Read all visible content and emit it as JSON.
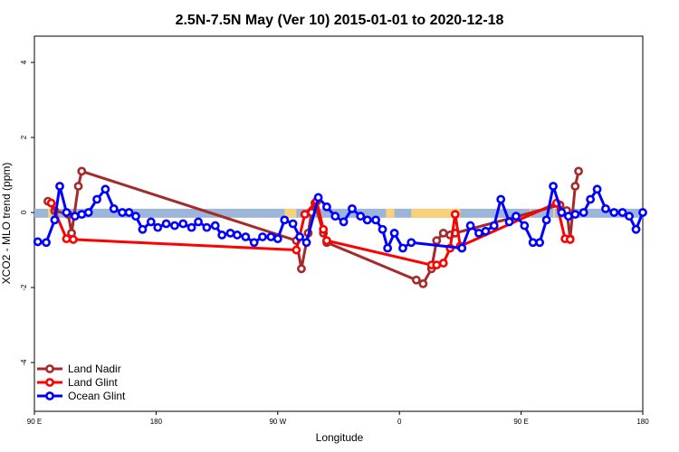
{
  "chart_data": {
    "type": "line",
    "title": "2.5N-7.5N May (Ver 10)   2015-01-01 to 2020-12-18",
    "xlabel": "Longitude",
    "ylabel": "XCO2 - MLO trend (ppm)",
    "xlim": [
      0,
      360
    ],
    "ylim": [
      -5.3,
      4.7
    ],
    "x_ticks": [
      {
        "value": 0,
        "label": "90 E"
      },
      {
        "value": 72,
        "label": "180"
      },
      {
        "value": 144,
        "label": "90 W"
      },
      {
        "value": 216,
        "label": "0"
      },
      {
        "value": 288,
        "label": "90 E"
      },
      {
        "value": 360,
        "label": "180"
      }
    ],
    "y_ticks": [
      {
        "value": -4,
        "label": "-4"
      },
      {
        "value": -2,
        "label": "-2"
      },
      {
        "value": 0,
        "label": "0"
      },
      {
        "value": 2,
        "label": "2"
      },
      {
        "value": 4,
        "label": "4"
      }
    ],
    "legend": {
      "placement": "bottom-left"
    },
    "band": {
      "ymin": -0.14,
      "ymax": 0.1,
      "land_color": "#f7d27a",
      "ocean_color": "#9cb5d9",
      "land_ranges": [
        [
          8,
          10
        ],
        [
          148,
          155
        ],
        [
          208,
          213
        ],
        [
          223,
          252
        ],
        [
          293,
          294
        ],
        [
          307,
          308
        ]
      ]
    },
    "series": [
      {
        "name": "Land Nadir",
        "color": "#a52a2a",
        "x": [
          8,
          12,
          20,
          22,
          26,
          28,
          155,
          158,
          162,
          164,
          166,
          171,
          173,
          226,
          230,
          235,
          238,
          242,
          246,
          249,
          311,
          315,
          317,
          320,
          322
        ],
        "y": [
          0.3,
          0.05,
          -0.05,
          -0.55,
          0.7,
          1.1,
          -0.75,
          -1.5,
          -0.55,
          0.0,
          0.25,
          -0.55,
          -0.8,
          -1.8,
          -1.9,
          -1.5,
          -0.75,
          -0.55,
          -0.6,
          -0.55,
          0.2,
          0.05,
          -0.7,
          0.7,
          1.1
        ]
      },
      {
        "name": "Land Glint",
        "color": "#ff0000",
        "x": [
          10,
          19,
          23,
          155,
          160,
          167,
          171,
          173,
          235,
          238,
          242,
          246,
          249,
          252,
          309,
          314,
          317
        ],
        "y": [
          0.25,
          -0.7,
          -0.72,
          -1.0,
          -0.05,
          0.3,
          -0.45,
          -0.75,
          -1.4,
          -1.4,
          -1.35,
          -0.95,
          -0.05,
          -0.9,
          0.25,
          -0.7,
          -0.72
        ]
      },
      {
        "name": "Ocean Glint",
        "color": "#0000ff",
        "x": [
          2,
          7,
          12,
          15,
          19,
          24,
          28,
          32,
          37,
          42,
          47,
          52,
          56,
          60,
          64,
          69,
          73,
          78,
          83,
          88,
          93,
          97,
          102,
          107,
          111,
          116,
          120,
          125,
          130,
          135,
          140,
          144,
          148,
          153,
          157,
          161,
          168,
          173,
          178,
          183,
          188,
          193,
          197,
          202,
          206,
          209,
          213,
          218,
          223,
          253,
          258,
          263,
          267,
          272,
          276,
          281,
          285,
          290,
          295,
          299,
          303,
          307,
          312,
          316,
          320,
          325,
          329,
          333,
          338,
          343,
          348,
          352,
          356,
          360
        ],
        "y": [
          -0.78,
          -0.8,
          -0.2,
          0.7,
          0.0,
          -0.1,
          -0.05,
          0.0,
          0.35,
          0.62,
          0.1,
          0.0,
          0.0,
          -0.1,
          -0.45,
          -0.25,
          -0.4,
          -0.3,
          -0.35,
          -0.3,
          -0.4,
          -0.25,
          -0.4,
          -0.35,
          -0.6,
          -0.55,
          -0.6,
          -0.65,
          -0.8,
          -0.65,
          -0.65,
          -0.7,
          -0.2,
          -0.3,
          -0.65,
          -0.8,
          0.4,
          0.15,
          -0.1,
          -0.25,
          0.1,
          -0.1,
          -0.2,
          -0.2,
          -0.45,
          -0.95,
          -0.55,
          -0.95,
          -0.8,
          -0.95,
          -0.35,
          -0.55,
          -0.5,
          -0.35,
          0.35,
          -0.25,
          -0.1,
          -0.35,
          -0.8,
          -0.8,
          -0.2,
          0.7,
          0.0,
          -0.1,
          -0.05,
          0.0,
          0.35,
          0.62,
          0.1,
          0.0,
          0.0,
          -0.1,
          -0.45,
          0.0
        ]
      }
    ]
  }
}
